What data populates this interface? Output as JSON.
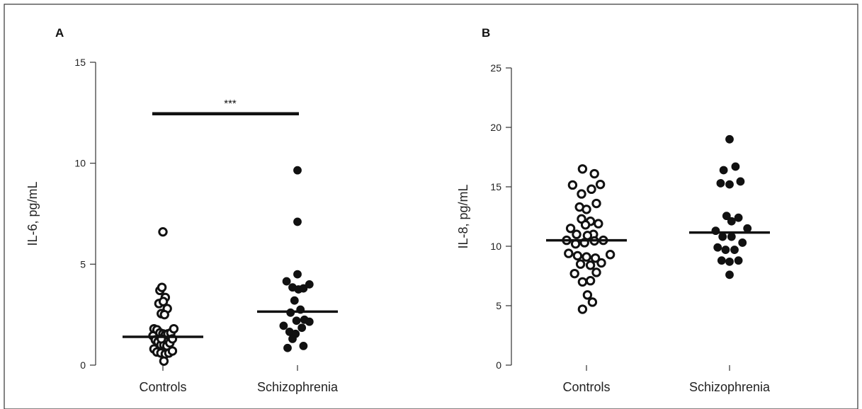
{
  "chart_data": [
    {
      "panel": "A",
      "type": "scatter",
      "ylabel": "IL-6, pg/mL",
      "xlabel": "",
      "categories": [
        "Controls",
        "Schizophrenia"
      ],
      "ylim": [
        0,
        15
      ],
      "yticks": [
        "0",
        "5",
        "10",
        "15"
      ],
      "yticks_values": [
        0,
        5,
        10,
        15
      ],
      "series": [
        {
          "category": "Controls",
          "marker": "open",
          "median": 1.4,
          "points": [
            {
              "x": 0,
              "y": 6.6
            },
            {
              "x": -0.15,
              "y": 3.7
            },
            {
              "x": -0.05,
              "y": 3.85
            },
            {
              "x": 0.12,
              "y": 3.35
            },
            {
              "x": -0.2,
              "y": 3.05
            },
            {
              "x": 0.02,
              "y": 3.15
            },
            {
              "x": 0.22,
              "y": 2.8
            },
            {
              "x": -0.08,
              "y": 2.55
            },
            {
              "x": 0.08,
              "y": 2.5
            },
            {
              "x": -0.45,
              "y": 1.8
            },
            {
              "x": -0.3,
              "y": 1.75
            },
            {
              "x": -0.15,
              "y": 1.6
            },
            {
              "x": 0.0,
              "y": 1.55
            },
            {
              "x": 0.12,
              "y": 1.5
            },
            {
              "x": 0.25,
              "y": 1.55
            },
            {
              "x": 0.4,
              "y": 1.6
            },
            {
              "x": 0.55,
              "y": 1.8
            },
            {
              "x": -0.5,
              "y": 1.45
            },
            {
              "x": -0.38,
              "y": 1.25
            },
            {
              "x": -0.25,
              "y": 1.15
            },
            {
              "x": -0.1,
              "y": 1.0
            },
            {
              "x": 0.05,
              "y": 1.0
            },
            {
              "x": 0.2,
              "y": 0.95
            },
            {
              "x": 0.35,
              "y": 1.1
            },
            {
              "x": 0.48,
              "y": 1.3
            },
            {
              "x": -0.08,
              "y": 1.3
            },
            {
              "x": -0.45,
              "y": 0.8
            },
            {
              "x": -0.3,
              "y": 0.65
            },
            {
              "x": -0.1,
              "y": 0.6
            },
            {
              "x": 0.12,
              "y": 0.55
            },
            {
              "x": 0.3,
              "y": 0.6
            },
            {
              "x": 0.48,
              "y": 0.7
            },
            {
              "x": 0.05,
              "y": 0.2
            }
          ]
        },
        {
          "category": "Schizophrenia",
          "marker": "filled",
          "median": 2.65,
          "points": [
            {
              "x": 0,
              "y": 9.65
            },
            {
              "x": 0,
              "y": 7.1
            },
            {
              "x": 0,
              "y": 4.5
            },
            {
              "x": -0.55,
              "y": 4.15
            },
            {
              "x": -0.25,
              "y": 3.85
            },
            {
              "x": 0.05,
              "y": 3.75
            },
            {
              "x": 0.3,
              "y": 3.8
            },
            {
              "x": 0.6,
              "y": 4.0
            },
            {
              "x": -0.15,
              "y": 3.2
            },
            {
              "x": 0.15,
              "y": 2.75
            },
            {
              "x": -0.35,
              "y": 2.6
            },
            {
              "x": 0.35,
              "y": 2.25
            },
            {
              "x": 0.6,
              "y": 2.15
            },
            {
              "x": -0.05,
              "y": 2.2
            },
            {
              "x": -0.7,
              "y": 1.95
            },
            {
              "x": -0.4,
              "y": 1.65
            },
            {
              "x": -0.1,
              "y": 1.55
            },
            {
              "x": 0.22,
              "y": 1.85
            },
            {
              "x": -0.25,
              "y": 1.3
            },
            {
              "x": -0.5,
              "y": 0.85
            },
            {
              "x": 0.3,
              "y": 0.95
            }
          ]
        }
      ],
      "significance": {
        "label": "***",
        "y": 12.45
      }
    },
    {
      "panel": "B",
      "type": "scatter",
      "ylabel": "IL-8, pg/mL",
      "xlabel": "",
      "categories": [
        "Controls",
        "Schizophrenia"
      ],
      "ylim": [
        0,
        25
      ],
      "yticks": [
        "0",
        "5",
        "10",
        "15",
        "20",
        "25"
      ],
      "yticks_values": [
        0,
        5,
        10,
        15,
        20,
        25
      ],
      "series": [
        {
          "category": "Controls",
          "marker": "open",
          "median": 10.5,
          "points": [
            {
              "x": -0.2,
              "y": 16.5
            },
            {
              "x": 0.4,
              "y": 16.1
            },
            {
              "x": -0.7,
              "y": 15.15
            },
            {
              "x": 0.7,
              "y": 15.2
            },
            {
              "x": -0.25,
              "y": 14.4
            },
            {
              "x": 0.25,
              "y": 14.8
            },
            {
              "x": 0.5,
              "y": 13.6
            },
            {
              "x": -0.35,
              "y": 13.3
            },
            {
              "x": 0.0,
              "y": 13.1
            },
            {
              "x": -0.25,
              "y": 12.3
            },
            {
              "x": 0.2,
              "y": 12.1
            },
            {
              "x": 0.6,
              "y": 11.9
            },
            {
              "x": -0.8,
              "y": 11.5
            },
            {
              "x": -0.05,
              "y": 11.8
            },
            {
              "x": 0.35,
              "y": 11.0
            },
            {
              "x": -0.5,
              "y": 11.0
            },
            {
              "x": 0.05,
              "y": 10.9
            },
            {
              "x": -1.0,
              "y": 10.5
            },
            {
              "x": -0.55,
              "y": 10.2
            },
            {
              "x": -0.1,
              "y": 10.3
            },
            {
              "x": 0.4,
              "y": 10.45
            },
            {
              "x": 0.85,
              "y": 10.5
            },
            {
              "x": -0.9,
              "y": 9.4
            },
            {
              "x": -0.45,
              "y": 9.2
            },
            {
              "x": 0.0,
              "y": 9.1
            },
            {
              "x": 0.45,
              "y": 9.0
            },
            {
              "x": 1.2,
              "y": 9.3
            },
            {
              "x": 0.75,
              "y": 8.6
            },
            {
              "x": -0.3,
              "y": 8.5
            },
            {
              "x": 0.2,
              "y": 8.4
            },
            {
              "x": -0.6,
              "y": 7.7
            },
            {
              "x": 0.5,
              "y": 7.8
            },
            {
              "x": -0.2,
              "y": 7.0
            },
            {
              "x": 0.2,
              "y": 7.1
            },
            {
              "x": 0.05,
              "y": 5.9
            },
            {
              "x": 0.3,
              "y": 5.3
            },
            {
              "x": -0.2,
              "y": 4.7
            }
          ]
        },
        {
          "category": "Schizophrenia",
          "marker": "filled",
          "median": 11.15,
          "points": [
            {
              "x": 0,
              "y": 19.0
            },
            {
              "x": 0.3,
              "y": 16.7
            },
            {
              "x": -0.3,
              "y": 16.4
            },
            {
              "x": -0.45,
              "y": 15.3
            },
            {
              "x": 0.0,
              "y": 15.2
            },
            {
              "x": 0.55,
              "y": 15.45
            },
            {
              "x": -0.15,
              "y": 12.55
            },
            {
              "x": 0.45,
              "y": 12.4
            },
            {
              "x": 0.1,
              "y": 12.1
            },
            {
              "x": -0.7,
              "y": 11.3
            },
            {
              "x": 0.9,
              "y": 11.5
            },
            {
              "x": -0.35,
              "y": 10.8
            },
            {
              "x": 0.1,
              "y": 10.8
            },
            {
              "x": 0.65,
              "y": 10.3
            },
            {
              "x": -0.6,
              "y": 9.9
            },
            {
              "x": -0.2,
              "y": 9.7
            },
            {
              "x": 0.25,
              "y": 9.7
            },
            {
              "x": -0.4,
              "y": 8.8
            },
            {
              "x": 0.0,
              "y": 8.7
            },
            {
              "x": 0.45,
              "y": 8.8
            },
            {
              "x": 0.0,
              "y": 7.6
            }
          ]
        }
      ],
      "significance": null
    }
  ]
}
